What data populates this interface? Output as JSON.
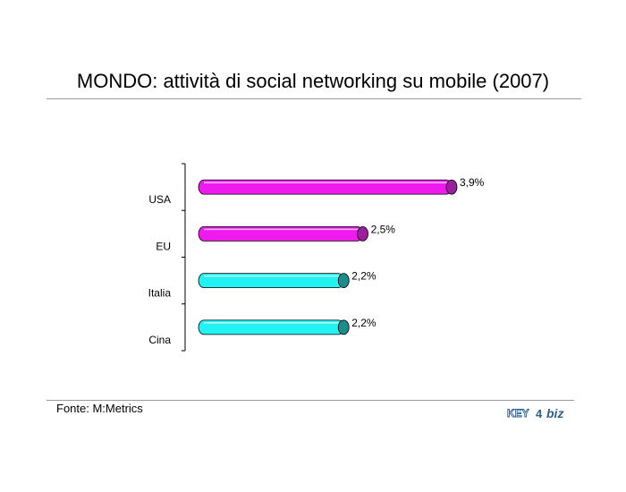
{
  "title": "MONDO: attività di social networking su mobile (2007)",
  "source": "Fonte: M:Metrics",
  "logo": {
    "text_left": "KEY",
    "text_mid": "4",
    "text_right": "biz",
    "color": "#2d5f8f"
  },
  "colors": {
    "magenta": "#ee1aee",
    "magenta_cap": "#9c1f9c",
    "cyan": "#22f2f2",
    "cyan_cap": "#1d8c8c"
  },
  "chart_data": {
    "type": "bar",
    "orientation": "horizontal",
    "title": "",
    "xlabel": "",
    "ylabel": "",
    "categories": [
      "USA",
      "EU",
      "Italia",
      "Cina"
    ],
    "values": [
      3.9,
      2.5,
      2.2,
      2.2
    ],
    "value_labels": [
      "3,9%",
      "2,5%",
      "2,2%",
      "2,2%"
    ],
    "bar_colors": [
      "magenta",
      "magenta",
      "cyan",
      "cyan"
    ],
    "xlim": [
      0,
      3.9
    ],
    "grid": false,
    "legend": "none"
  }
}
